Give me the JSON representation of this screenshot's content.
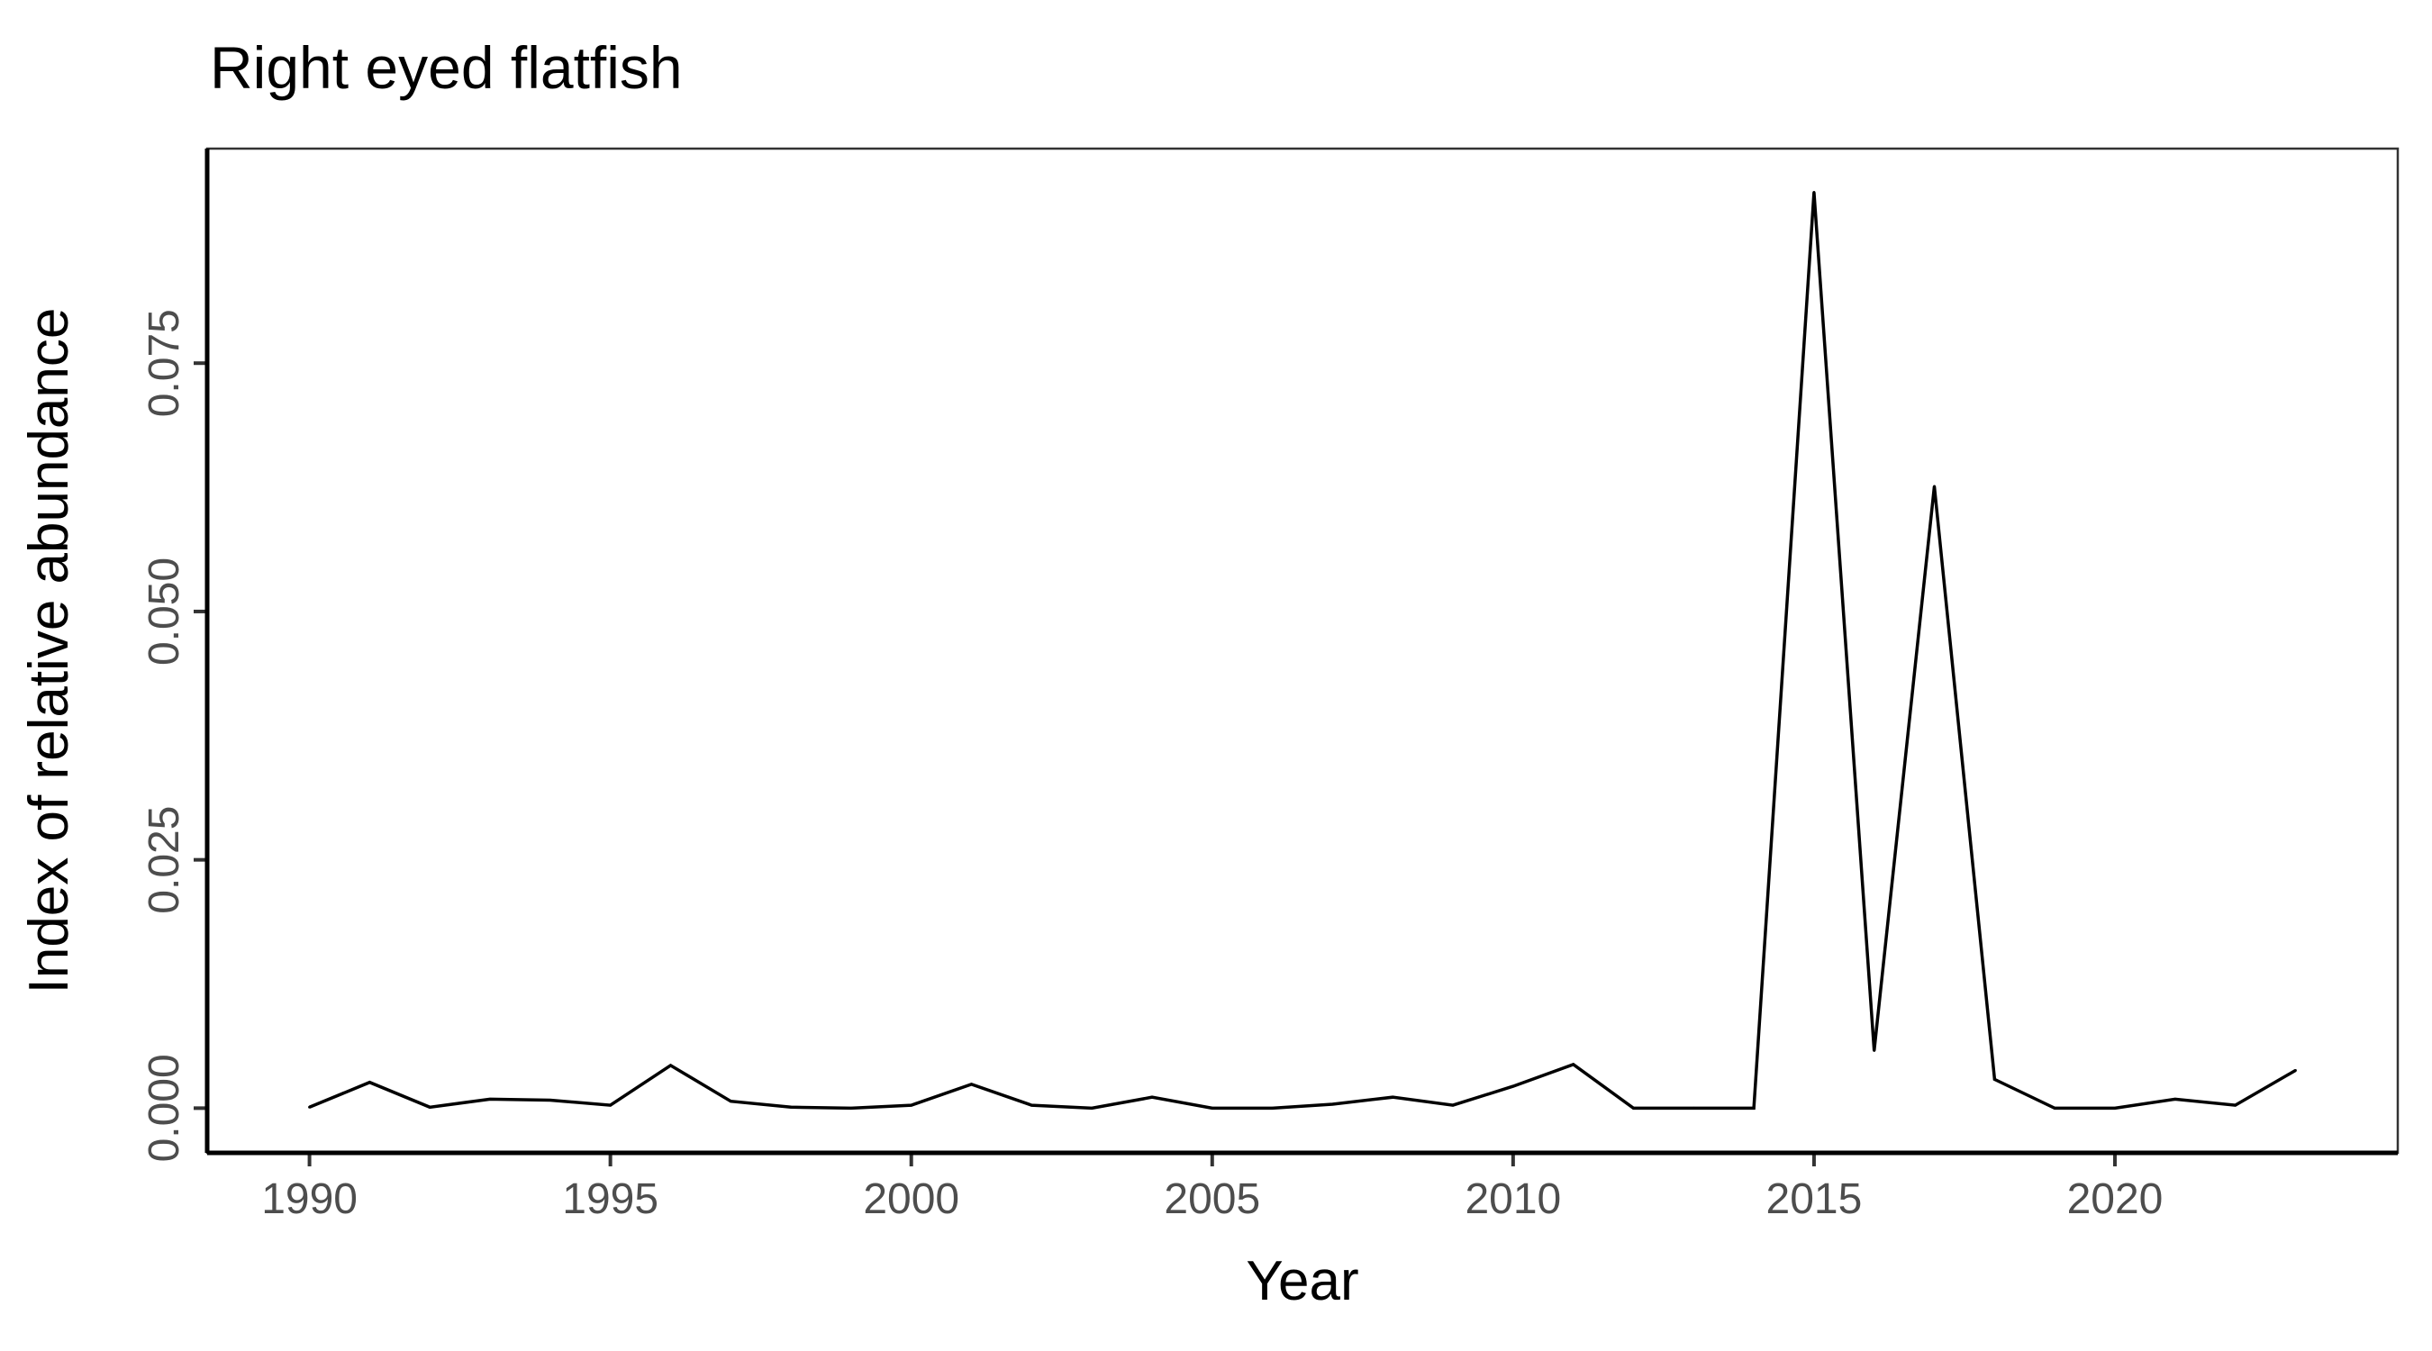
{
  "chart_data": {
    "type": "line",
    "title": "Right eyed flatfish",
    "xlabel": "Year",
    "ylabel": "Index of relative abundance",
    "xlim": [
      1988.3,
      2024.7
    ],
    "ylim": [
      -0.0045,
      0.0966
    ],
    "x_ticks": [
      1990,
      1995,
      2000,
      2005,
      2010,
      2015,
      2020
    ],
    "x_tick_labels": [
      "1990",
      "1995",
      "2000",
      "2005",
      "2010",
      "2015",
      "2020"
    ],
    "y_ticks": [
      0.0,
      0.025,
      0.05,
      0.075
    ],
    "y_tick_labels": [
      "0.000",
      "0.025",
      "0.050",
      "0.075"
    ],
    "grid": false,
    "legend": "none",
    "line_color": "#000000",
    "series": [
      {
        "x": [
          1990,
          1991,
          1992,
          1993,
          1994,
          1995,
          1996,
          1997,
          1998,
          1999,
          2000,
          2001,
          2002,
          2003,
          2004,
          2005,
          2006,
          2007,
          2008,
          2009,
          2010,
          2011,
          2012,
          2013,
          2014,
          2015,
          2016,
          2017,
          2018,
          2019,
          2020,
          2021,
          2022,
          2023
        ],
        "values": [
          0.0001,
          0.0026,
          0.0001,
          0.0009,
          0.0008,
          0.0003,
          0.0043,
          0.0007,
          0.0001,
          0.0,
          0.0003,
          0.0024,
          0.0003,
          0.0,
          0.0011,
          0.0,
          0.0,
          0.0004,
          0.0011,
          0.0003,
          0.0022,
          0.0044,
          0.0,
          0.0,
          0.0,
          0.0922,
          0.0058,
          0.0626,
          0.0029,
          0.0,
          0.0,
          0.0009,
          0.0003,
          0.0038
        ]
      }
    ]
  }
}
